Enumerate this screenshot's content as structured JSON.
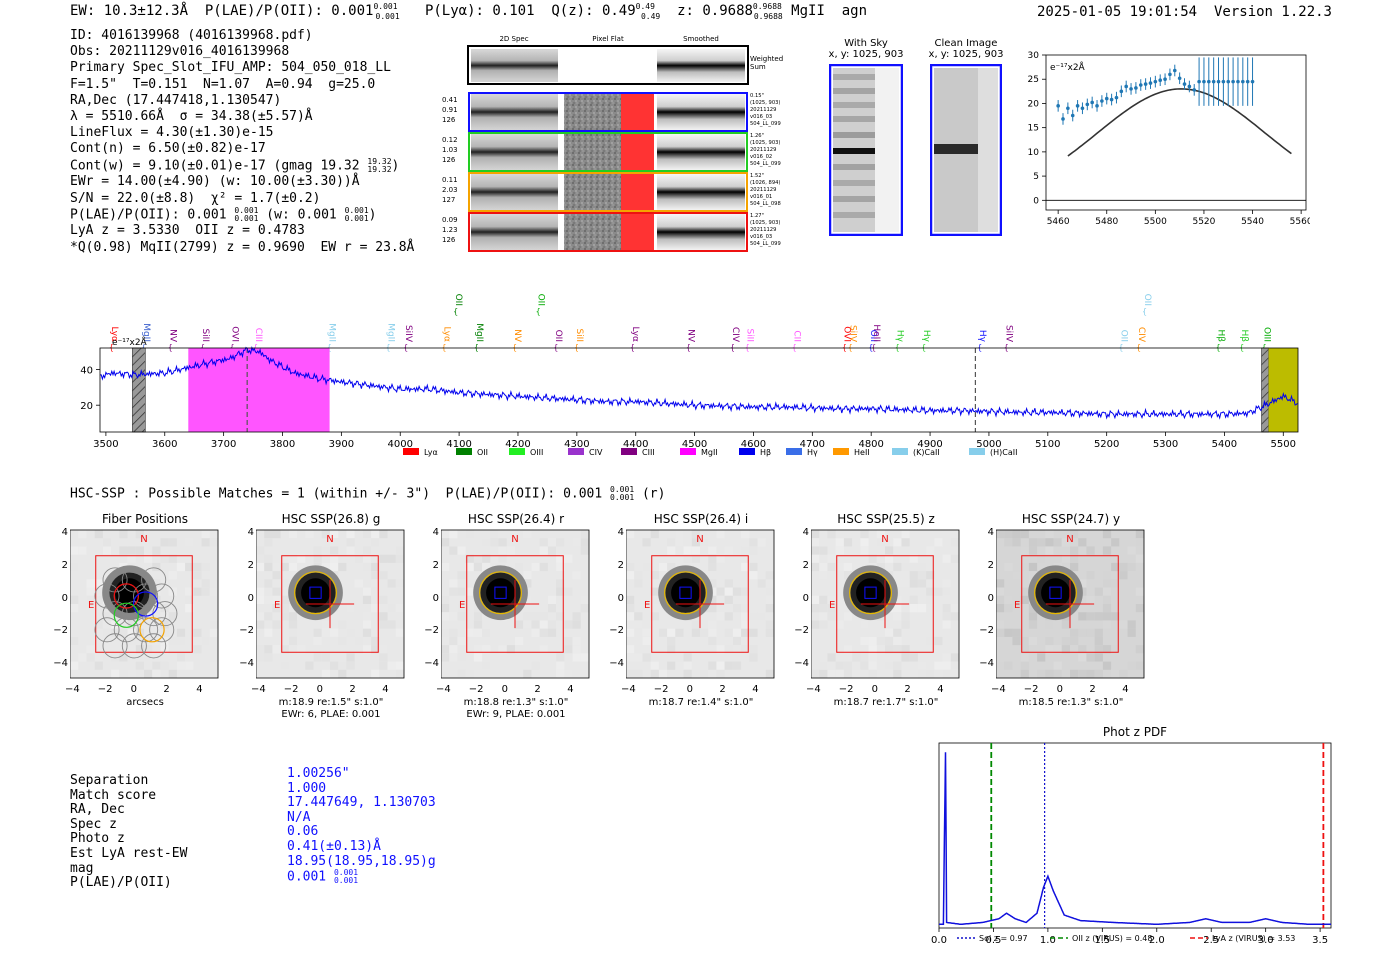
{
  "header": {
    "ew": "EW: 10.3±12.3Å",
    "plae_label": "P(LAE)/P(OII): 0.001",
    "plae_frac_hi": "0.001",
    "plae_frac_lo": "0.001",
    "plya": "P(Lyα): 0.101",
    "qz_label": "Q(z): 0.49",
    "qz_hi": "0.49",
    "qz_lo": "0.49",
    "z_label": "z: 0.9688",
    "z_hi": "0.9688",
    "z_lo": "0.9688",
    "line_id": "MgII",
    "type": "agn",
    "timestamp": "2025-01-05 19:01:54",
    "version": "Version 1.22.3"
  },
  "info": {
    "id": "ID: 4016139968 (4016139968.pdf)",
    "obs": "Obs: 20211129v016_4016139968",
    "primary": "Primary Spec_Slot_IFU_AMP: 504_050_018_LL",
    "fiber": "F=1.5\"  T=0.151  N=1.07  A=0.94  g=25.0",
    "radec": "RA,Dec (17.447418,1.130547)",
    "lambda": "λ = 5510.66Å  σ = 34.38(±5.57)Å",
    "lineflux": "LineFlux = 4.30(±1.30)e-15",
    "contn": "Cont(n) = 6.50(±0.82)e-17",
    "contw": "Cont(w) = 9.10(±0.01)e-17 (gmag 19.32",
    "contw_hi": "19.32",
    "contw_lo": "19.32",
    "ewr": "EWr = 14.00(±4.90) (w: 10.00(±3.30))Å",
    "sn": "S/N = 22.0(±8.8)  χ² = 1.7(±0.2)",
    "plae_a": "P(LAE)/P(OII): 0.001",
    "plae_a_hi": "0.001",
    "plae_a_lo": "0.001",
    "plae_b": "(w: 0.001",
    "plae_b_hi": "0.001",
    "plae_b_lo": "0.001",
    "lya": "LyA z = 3.5330  OII z = 0.4783",
    "q": "*Q(0.98) MqII(2799) z = 0.9690  EW r = 23.8Å"
  },
  "cutouts": {
    "col_titles": [
      "2D Spec",
      "Pixel Flat",
      "Smoothed"
    ],
    "weighted_label": "Weighted Sum",
    "rows": [
      {
        "left": [
          "0.41",
          "0.91",
          "126"
        ],
        "right": [
          "0.15\"",
          "(1025, 903)",
          "20211129",
          "v016_03",
          "504_LL_099"
        ],
        "color": "#1010ff"
      },
      {
        "left": [
          "0.12",
          "1.03",
          "126"
        ],
        "right": [
          "1.26\"",
          "(1025, 903)",
          "20211129",
          "v016_02",
          "504_LL_099"
        ],
        "color": "#22cc22"
      },
      {
        "left": [
          "0.11",
          "2.03",
          "127"
        ],
        "right": [
          "1.52\"",
          "(1026, 894)",
          "20211129",
          "v016_01",
          "504_LL_098"
        ],
        "color": "#f5a300"
      },
      {
        "left": [
          "0.09",
          "1.23",
          "126"
        ],
        "right": [
          "1.27\"",
          "(1025, 903)",
          "20211129",
          "v016_03",
          "504_LL_099"
        ],
        "color": "#ee1111"
      }
    ],
    "with_sky_title": "With Sky",
    "with_sky_xy": "x, y: 1025, 903",
    "clean_title": "Clean Image",
    "clean_xy": "x, y: 1025, 903"
  },
  "chart_data": [
    {
      "type": "scatter",
      "title": "",
      "ylabel_note": "e⁻¹⁷x2Å",
      "xlim": [
        5455,
        5562
      ],
      "ylim": [
        -2,
        30
      ],
      "xticks": [
        5460,
        5480,
        5500,
        5520,
        5540,
        5560
      ],
      "yticks": [
        0,
        5,
        10,
        15,
        20,
        25,
        30
      ],
      "points": [
        {
          "x": 5460,
          "y": 19.5,
          "e": 1.2
        },
        {
          "x": 5462,
          "y": 16.8,
          "e": 1.2
        },
        {
          "x": 5464,
          "y": 19.0,
          "e": 1.2
        },
        {
          "x": 5466,
          "y": 17.5,
          "e": 1.2
        },
        {
          "x": 5468,
          "y": 19.5,
          "e": 1.2
        },
        {
          "x": 5470,
          "y": 19.0,
          "e": 1.2
        },
        {
          "x": 5472,
          "y": 19.8,
          "e": 1.2
        },
        {
          "x": 5474,
          "y": 20.2,
          "e": 1.2
        },
        {
          "x": 5476,
          "y": 19.5,
          "e": 1.2
        },
        {
          "x": 5478,
          "y": 20.5,
          "e": 1.2
        },
        {
          "x": 5480,
          "y": 21.0,
          "e": 1.2
        },
        {
          "x": 5482,
          "y": 20.8,
          "e": 1.2
        },
        {
          "x": 5484,
          "y": 21.2,
          "e": 1.2
        },
        {
          "x": 5486,
          "y": 22.5,
          "e": 1.2
        },
        {
          "x": 5488,
          "y": 23.5,
          "e": 1.2
        },
        {
          "x": 5490,
          "y": 23.0,
          "e": 1.2
        },
        {
          "x": 5492,
          "y": 23.2,
          "e": 1.2
        },
        {
          "x": 5494,
          "y": 23.8,
          "e": 1.2
        },
        {
          "x": 5496,
          "y": 24.0,
          "e": 1.2
        },
        {
          "x": 5498,
          "y": 24.2,
          "e": 1.2
        },
        {
          "x": 5500,
          "y": 24.5,
          "e": 1.2
        },
        {
          "x": 5502,
          "y": 24.8,
          "e": 1.2
        },
        {
          "x": 5504,
          "y": 25.0,
          "e": 1.2
        },
        {
          "x": 5506,
          "y": 26.0,
          "e": 1.2
        },
        {
          "x": 5508,
          "y": 26.8,
          "e": 1.2
        },
        {
          "x": 5510,
          "y": 25.2,
          "e": 1.2
        },
        {
          "x": 5512,
          "y": 24.0,
          "e": 1.2
        },
        {
          "x": 5514,
          "y": 23.5,
          "e": 1.2
        },
        {
          "x": 5516,
          "y": 22.8,
          "e": 1.2
        },
        {
          "x": 5518,
          "y": 24.5,
          "e": 5.0
        },
        {
          "x": 5520,
          "y": 24.5,
          "e": 5.0
        },
        {
          "x": 5522,
          "y": 24.5,
          "e": 5.0
        },
        {
          "x": 5524,
          "y": 24.5,
          "e": 5.0
        },
        {
          "x": 5526,
          "y": 24.5,
          "e": 5.0
        },
        {
          "x": 5528,
          "y": 24.5,
          "e": 5.0
        },
        {
          "x": 5530,
          "y": 24.5,
          "e": 5.0
        },
        {
          "x": 5532,
          "y": 24.5,
          "e": 5.0
        },
        {
          "x": 5534,
          "y": 24.5,
          "e": 5.0
        },
        {
          "x": 5536,
          "y": 24.5,
          "e": 5.0
        },
        {
          "x": 5538,
          "y": 24.5,
          "e": 5.0
        },
        {
          "x": 5540,
          "y": 24.5,
          "e": 5.0
        }
      ],
      "fit": {
        "amp": 23.0,
        "mu": 5510.66,
        "sigma": 34.38
      },
      "fit_x_range": [
        5464,
        5556
      ]
    },
    {
      "type": "line",
      "xlim": [
        3490,
        5525
      ],
      "ylim": [
        5,
        52
      ],
      "xticks": [
        3500,
        3600,
        3700,
        3800,
        3900,
        4000,
        4100,
        4200,
        4300,
        4400,
        4500,
        4600,
        4700,
        4800,
        4900,
        5000,
        5100,
        5200,
        5300,
        5400,
        5500
      ],
      "yticks": [
        20,
        40
      ],
      "ylabel_note": "e⁻¹⁷x2Å",
      "spectrum_knots": [
        [
          3490,
          36
        ],
        [
          3510,
          38
        ],
        [
          3550,
          37
        ],
        [
          3600,
          38
        ],
        [
          3640,
          41
        ],
        [
          3680,
          44
        ],
        [
          3710,
          46
        ],
        [
          3740,
          51
        ],
        [
          3760,
          50
        ],
        [
          3780,
          45
        ],
        [
          3820,
          38
        ],
        [
          3860,
          35
        ],
        [
          3900,
          33
        ],
        [
          3950,
          31
        ],
        [
          4000,
          29
        ],
        [
          4050,
          29
        ],
        [
          4100,
          27
        ],
        [
          4150,
          26
        ],
        [
          4200,
          25
        ],
        [
          4250,
          24
        ],
        [
          4300,
          23
        ],
        [
          4350,
          22
        ],
        [
          4400,
          22
        ],
        [
          4450,
          21
        ],
        [
          4500,
          20
        ],
        [
          4550,
          19.5
        ],
        [
          4600,
          19
        ],
        [
          4650,
          19
        ],
        [
          4700,
          18.5
        ],
        [
          4750,
          18
        ],
        [
          4800,
          18
        ],
        [
          4850,
          17.5
        ],
        [
          4900,
          17
        ],
        [
          4950,
          17
        ],
        [
          5000,
          16.5
        ],
        [
          5050,
          16
        ],
        [
          5100,
          16
        ],
        [
          5150,
          15.5
        ],
        [
          5200,
          15
        ],
        [
          5250,
          15
        ],
        [
          5300,
          15
        ],
        [
          5350,
          15
        ],
        [
          5400,
          15
        ],
        [
          5440,
          15.5
        ],
        [
          5470,
          20
        ],
        [
          5500,
          25
        ],
        [
          5525,
          21
        ]
      ],
      "highlight_span": [
        3640,
        3880
      ],
      "highlight_color": "#ff55ff",
      "hatched_spans": [
        [
          3545,
          3567
        ],
        [
          5463,
          5475
        ]
      ],
      "yellow_span": [
        5475,
        5525
      ],
      "dashed_lines": [
        3740,
        4977
      ],
      "line_labels": [
        {
          "name": "Lyα",
          "x": 3510,
          "color": "#ff0000"
        },
        {
          "name": "MgII",
          "x": 3565,
          "color": "#3a5fcd"
        },
        {
          "name": "NV",
          "x": 3610,
          "color": "#800080"
        },
        {
          "name": "SiII",
          "x": 3665,
          "color": "#800080"
        },
        {
          "name": "OVI",
          "x": 3715,
          "color": "#800080"
        },
        {
          "name": "CIII",
          "x": 3755,
          "color": "#ff55ff"
        },
        {
          "name": "MgII",
          "x": 3880,
          "color": "#87ceeb"
        },
        {
          "name": "MgII",
          "x": 3980,
          "color": "#87ceeb"
        },
        {
          "name": "SiIV",
          "x": 4010,
          "color": "#800080"
        },
        {
          "name": "Lyα",
          "x": 4075,
          "color": "#ff8c00"
        },
        {
          "name": "OII",
          "x": 4095,
          "color": "#008000"
        },
        {
          "name": "MgII",
          "x": 4130,
          "color": "#008000"
        },
        {
          "name": "NV",
          "x": 4195,
          "color": "#ff8c00"
        },
        {
          "name": "OII",
          "x": 4235,
          "color": "#00aa00"
        },
        {
          "name": "OII",
          "x": 4265,
          "color": "#800080"
        },
        {
          "name": "SiII",
          "x": 4300,
          "color": "#ff8c00"
        },
        {
          "name": "Lyα",
          "x": 4395,
          "color": "#800080"
        },
        {
          "name": "NV",
          "x": 4490,
          "color": "#800080"
        },
        {
          "name": "CIV",
          "x": 4565,
          "color": "#800080"
        },
        {
          "name": "SiII",
          "x": 4590,
          "color": "#ff55ff"
        },
        {
          "name": "CII",
          "x": 4670,
          "color": "#ff55ff"
        },
        {
          "name": "OVI",
          "x": 4755,
          "color": "#ff0000"
        },
        {
          "name": "SiIV",
          "x": 4765,
          "color": "#ff8c00"
        },
        {
          "name": "OII",
          "x": 4800,
          "color": "#1010ff"
        },
        {
          "name": "HeII",
          "x": 4805,
          "color": "#800080"
        },
        {
          "name": "Hγ",
          "x": 4845,
          "color": "#22cc22"
        },
        {
          "name": "Hγ",
          "x": 4890,
          "color": "#22cc22"
        },
        {
          "name": "Hγ",
          "x": 4985,
          "color": "#1010ff"
        },
        {
          "name": "SiIV",
          "x": 5030,
          "color": "#800080"
        },
        {
          "name": "OII",
          "x": 5225,
          "color": "#87ceeb"
        },
        {
          "name": "CIV",
          "x": 5255,
          "color": "#ff8c00"
        },
        {
          "name": "OII",
          "x": 5265,
          "color": "#87ceeb"
        },
        {
          "name": "Hβ",
          "x": 5390,
          "color": "#00aa00"
        },
        {
          "name": "Hβ",
          "x": 5430,
          "color": "#22cc22"
        },
        {
          "name": "OIII",
          "x": 5468,
          "color": "#00aa00"
        }
      ],
      "legend": [
        {
          "name": "Lyα",
          "color": "#ff0000"
        },
        {
          "name": "OII",
          "color": "#008000"
        },
        {
          "name": "OIII",
          "color": "#22ee22"
        },
        {
          "name": "CIV",
          "color": "#9932cc"
        },
        {
          "name": "CIII",
          "color": "#800080"
        },
        {
          "name": "MgII",
          "color": "#ff00ff"
        },
        {
          "name": "Hβ",
          "color": "#0000ee"
        },
        {
          "name": "Hγ",
          "color": "#3a6ee8"
        },
        {
          "name": "HeII",
          "color": "#ff9900"
        },
        {
          "name": "(K)CaII",
          "color": "#87ceeb"
        },
        {
          "name": "(H)CaII",
          "color": "#87ceeb"
        }
      ]
    },
    {
      "type": "line",
      "title": "Phot z PDF",
      "xlim": [
        0,
        3.6
      ],
      "ylim": [
        0,
        1.0
      ],
      "xticks": [
        0.0,
        0.5,
        1.0,
        1.5,
        2.0,
        2.5,
        3.0,
        3.5
      ],
      "pdf_knots": [
        [
          0.0,
          0.02
        ],
        [
          0.04,
          0.02
        ],
        [
          0.06,
          0.95
        ],
        [
          0.07,
          0.03
        ],
        [
          0.2,
          0.02
        ],
        [
          0.4,
          0.03
        ],
        [
          0.55,
          0.05
        ],
        [
          0.62,
          0.08
        ],
        [
          0.7,
          0.05
        ],
        [
          0.8,
          0.03
        ],
        [
          0.9,
          0.08
        ],
        [
          0.96,
          0.22
        ],
        [
          1.0,
          0.28
        ],
        [
          1.05,
          0.2
        ],
        [
          1.15,
          0.07
        ],
        [
          1.3,
          0.04
        ],
        [
          1.6,
          0.03
        ],
        [
          2.0,
          0.02
        ],
        [
          2.3,
          0.03
        ],
        [
          2.45,
          0.05
        ],
        [
          2.6,
          0.03
        ],
        [
          2.85,
          0.03
        ],
        [
          3.0,
          0.05
        ],
        [
          3.15,
          0.03
        ],
        [
          3.4,
          0.02
        ],
        [
          3.6,
          0.02
        ]
      ],
      "vlines": [
        {
          "x": 0.97,
          "color": "#1010cc",
          "style": "dotted",
          "label": "Sol z = 0.97"
        },
        {
          "x": 0.48,
          "color": "#008800",
          "style": "dashed",
          "label": "OII z (VIRUS) = 0.48"
        },
        {
          "x": 3.53,
          "color": "#ee1111",
          "style": "dashed",
          "label": "LyA z (VIRUS) = 3.53"
        }
      ]
    }
  ],
  "hsc": {
    "title_a": "HSC-SSP : Possible Matches = 1 (within +/- 3\")  P(LAE)/P(OII): 0.001",
    "title_hi": "0.001",
    "title_lo": "0.001",
    "title_b": "(r)",
    "axis_ticks": [
      "−4",
      "−2",
      "0",
      "2",
      "4"
    ],
    "x_axis_label": "arcsecs",
    "panels": [
      {
        "title": "Fiber Positions",
        "caption1": "",
        "caption2": ""
      },
      {
        "title": "HSC SSP(26.8) g",
        "caption1": "m:18.9  re:1.5\"  s:1.0\"",
        "caption2": "EWr: 6, PLAE: 0.001"
      },
      {
        "title": "HSC SSP(26.4) r",
        "caption1": "m:18.8  re:1.3\"  s:1.0\"",
        "caption2": "EWr: 9, PLAE: 0.001"
      },
      {
        "title": "HSC SSP(26.4) i",
        "caption1": "m:18.7  re:1.4\"  s:1.0\"",
        "caption2": ""
      },
      {
        "title": "HSC SSP(25.5) z",
        "caption1": "m:18.7  re:1.7\"  s:1.0\"",
        "caption2": ""
      },
      {
        "title": "HSC SSP(24.7) y",
        "caption1": "m:18.5  re:1.3\"  s:1.0\"",
        "caption2": ""
      }
    ],
    "compass_n": "N",
    "compass_e": "E"
  },
  "match": {
    "labels": [
      "Separation",
      "Match score",
      "RA, Dec",
      "Spec z",
      "Photo z",
      "Est LyA rest-EW",
      "mag",
      "P(LAE)/P(OII)"
    ],
    "separation": "1.00256\"",
    "score": "1.000",
    "radec": "17.447649, 1.130703",
    "specz": "N/A",
    "photoz": "0.06",
    "lya_ew": "0.41(±0.13)Å",
    "mag": "18.95(18.95,18.95)g",
    "plae": "0.001",
    "plae_hi": "0.001",
    "plae_lo": "0.001"
  }
}
